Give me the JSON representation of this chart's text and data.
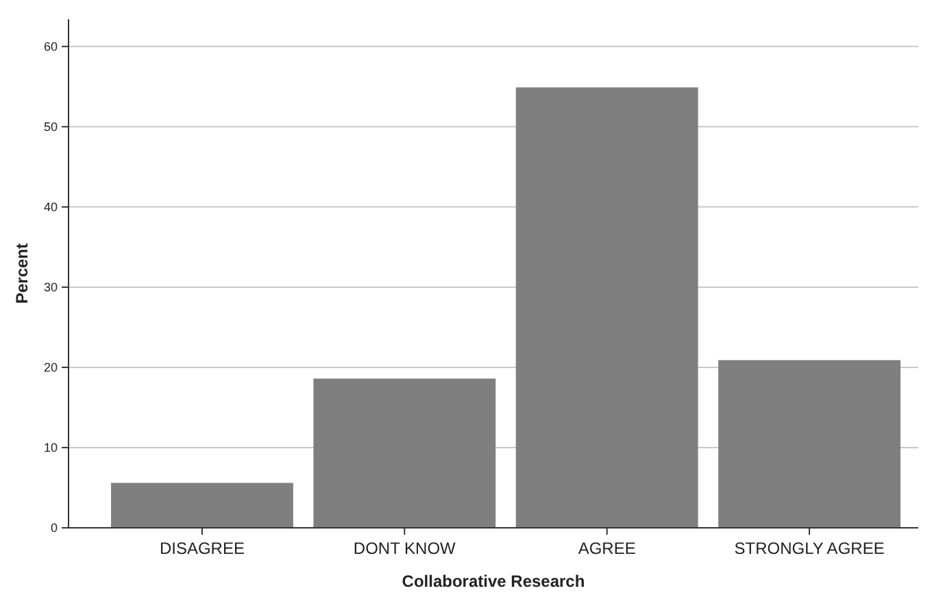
{
  "chart_data": {
    "type": "bar",
    "xlabel": "Collaborative Research",
    "ylabel": "Percent",
    "categories": [
      "DISAGREE",
      "DONT KNOW",
      "AGREE",
      "STRONGLY AGREE"
    ],
    "values": [
      5.6,
      18.6,
      54.9,
      20.9
    ],
    "color": "#7f7f7f",
    "ylim": [
      0,
      63.4
    ],
    "yticks": [
      0,
      10,
      20,
      30,
      40,
      50,
      60
    ],
    "grid": "y"
  }
}
